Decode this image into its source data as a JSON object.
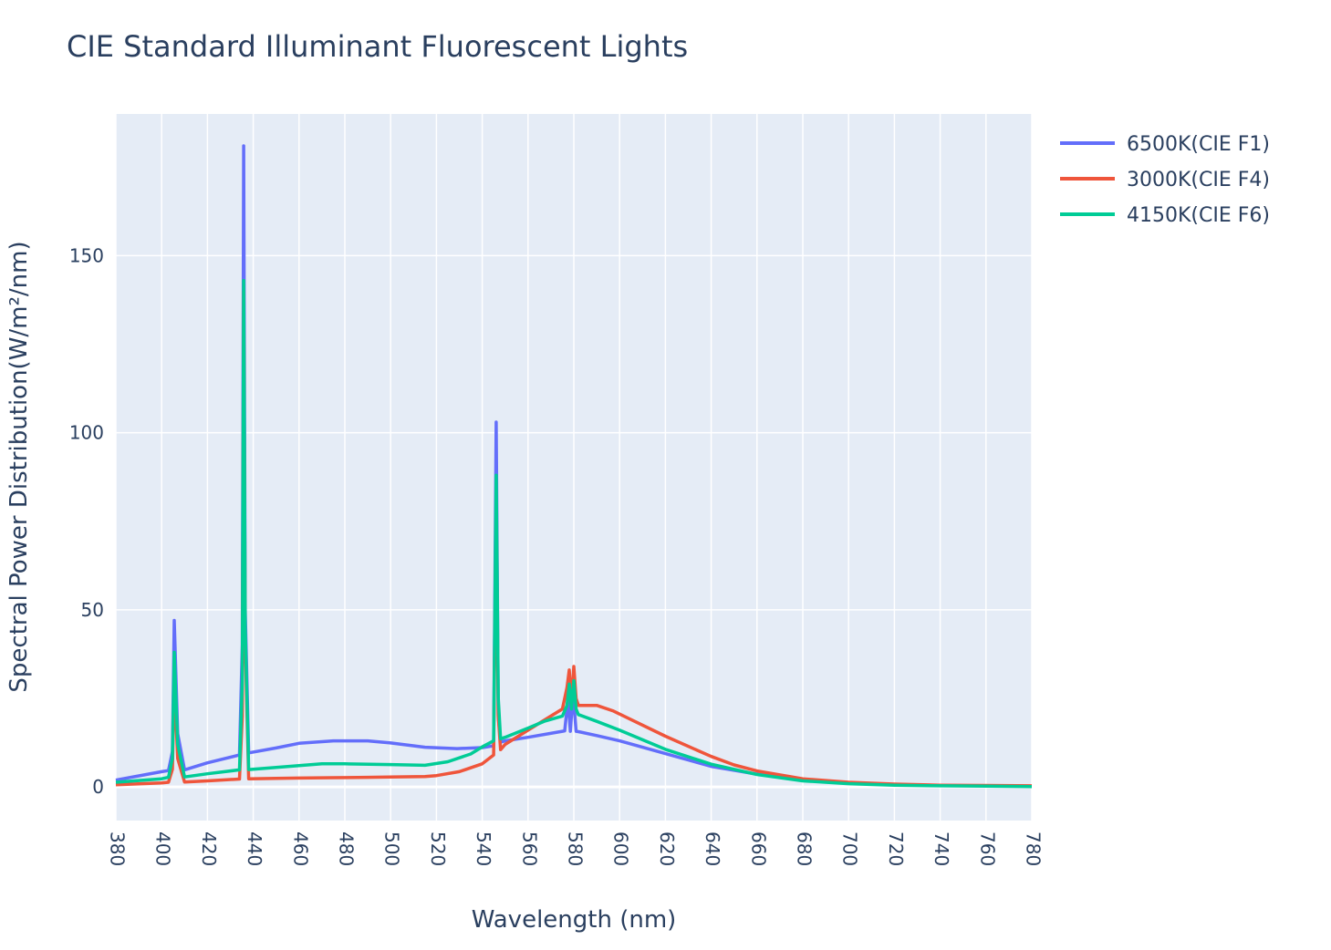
{
  "chart_data": {
    "type": "line",
    "title": "CIE Standard Illuminant Fluorescent Lights",
    "xlabel": "Wavelength (nm)",
    "ylabel": "Spectral Power Distribution(W/m²/nm)",
    "xlim": [
      380,
      780
    ],
    "ylim": [
      -9.5,
      190
    ],
    "x_ticks": [
      380,
      400,
      420,
      440,
      460,
      480,
      500,
      520,
      540,
      560,
      580,
      600,
      620,
      640,
      660,
      680,
      700,
      720,
      740,
      760,
      780
    ],
    "y_ticks": [
      0,
      50,
      100,
      150
    ],
    "grid": true,
    "legend_position": "top-right",
    "colors": {
      "plot_bg": "#e5ecf6",
      "grid": "#ffffff",
      "text": "#2a3f5f"
    },
    "series": [
      {
        "name": "6500K(CIE F1)",
        "color": "#636efa",
        "x": [
          380,
          400,
          403,
          404.7,
          405.5,
          407,
          410,
          420,
          434,
          435.2,
          435.8,
          436.5,
          438,
          450,
          460,
          475,
          490,
          500,
          515,
          529,
          540,
          545,
          546.1,
          547,
          548,
          550,
          560,
          575,
          576,
          577.5,
          578.5,
          579.5,
          580,
          581,
          582,
          590,
          600,
          620,
          640,
          660,
          680,
          700,
          720,
          740,
          760,
          780
        ],
        "y": [
          1.9,
          4.3,
          4.6,
          10,
          47,
          15,
          4.8,
          6.8,
          9,
          40,
          181,
          50,
          9.6,
          11,
          12.3,
          13,
          13,
          12.4,
          11.2,
          10.8,
          11.1,
          11.6,
          103,
          20,
          12.6,
          13,
          14,
          15.7,
          15.8,
          25,
          15.7,
          25,
          24,
          15.7,
          15.6,
          14.5,
          13,
          9.4,
          5.8,
          3.6,
          2,
          1.1,
          0.7,
          0.4,
          0.3,
          0.2
        ]
      },
      {
        "name": "3000K(CIE F4)",
        "color": "#ef553b",
        "x": [
          380,
          400,
          403,
          404.7,
          405.5,
          407,
          410,
          420,
          434,
          435.2,
          435.8,
          436.5,
          438,
          450,
          460,
          475,
          490,
          500,
          515,
          520,
          530,
          540,
          545,
          546.1,
          547,
          548,
          550,
          560,
          570,
          575,
          577,
          578,
          579,
          580,
          581,
          582,
          590,
          597,
          605,
          620,
          640,
          650,
          660,
          680,
          700,
          720,
          740,
          760,
          780
        ],
        "y": [
          0.6,
          1.1,
          1.3,
          5,
          30,
          8,
          1.4,
          1.7,
          2.2,
          20,
          140,
          40,
          2.3,
          2.4,
          2.5,
          2.6,
          2.7,
          2.8,
          2.9,
          3.2,
          4.3,
          6.5,
          9,
          80,
          20,
          10.5,
          12,
          16,
          20,
          22,
          28,
          33,
          24,
          34,
          25,
          23,
          23,
          21.5,
          19,
          14.3,
          8.6,
          6.2,
          4.5,
          2.3,
          1.3,
          0.8,
          0.5,
          0.4,
          0.3
        ]
      },
      {
        "name": "4150K(CIE F6)",
        "color": "#00cc96",
        "x": [
          380,
          400,
          403,
          404.7,
          405.5,
          407,
          410,
          420,
          434,
          435.2,
          435.8,
          436.5,
          438,
          450,
          460,
          470,
          480,
          500,
          515,
          525,
          535,
          540,
          545,
          546.1,
          547,
          548,
          550,
          560,
          567,
          575,
          577,
          578,
          579,
          580,
          581,
          582,
          590,
          600,
          620,
          640,
          660,
          680,
          700,
          720,
          740,
          760,
          780
        ],
        "y": [
          1.3,
          2.3,
          2.7,
          8,
          38,
          12,
          2.8,
          3.7,
          4.8,
          30,
          143,
          45,
          4.9,
          5.5,
          6,
          6.5,
          6.5,
          6.3,
          6.1,
          7.1,
          9.3,
          11.3,
          13,
          88,
          25,
          13.6,
          14,
          16.6,
          18.5,
          20,
          23,
          29,
          22,
          30,
          22,
          20.4,
          18.5,
          16,
          10.6,
          6.4,
          3.5,
          1.7,
          0.9,
          0.5,
          0.3,
          0.2,
          0.1
        ]
      }
    ]
  }
}
